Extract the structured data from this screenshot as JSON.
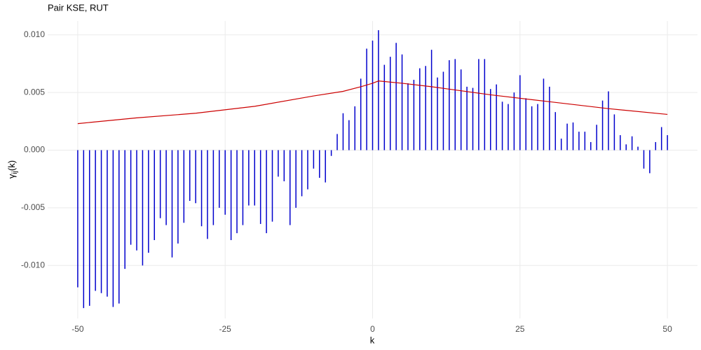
{
  "chart_data": {
    "type": "bar_line",
    "title": "Pair KSE, RUT",
    "xlabel": "k",
    "ylabel": {
      "symbol": "γ",
      "subscript": "ij",
      "argument": "(k)"
    },
    "xlim": [
      -55.1,
      55.1
    ],
    "ylim": [
      -0.0146,
      0.0112
    ],
    "xticks": [
      -50,
      -25,
      0,
      25,
      50
    ],
    "yticks": [
      {
        "value": -0.01,
        "label": "-0.010"
      },
      {
        "value": -0.005,
        "label": "-0.005"
      },
      {
        "value": 0,
        "label": "0.000"
      },
      {
        "value": 0.005,
        "label": "0.005"
      },
      {
        "value": 0.01,
        "label": "0.010"
      }
    ],
    "grid": true,
    "series": [
      {
        "kind": "bar",
        "color": "#0000cd",
        "x": [
          -50,
          -49,
          -48,
          -47,
          -46,
          -45,
          -44,
          -43,
          -42,
          -41,
          -40,
          -39,
          -38,
          -37,
          -36,
          -35,
          -34,
          -33,
          -32,
          -31,
          -30,
          -29,
          -28,
          -27,
          -26,
          -25,
          -24,
          -23,
          -22,
          -21,
          -20,
          -19,
          -18,
          -17,
          -16,
          -15,
          -14,
          -13,
          -12,
          -11,
          -10,
          -9,
          -8,
          -7,
          -6,
          -5,
          -4,
          -3,
          -2,
          -1,
          0,
          1,
          2,
          3,
          4,
          5,
          6,
          7,
          8,
          9,
          10,
          11,
          12,
          13,
          14,
          15,
          16,
          17,
          18,
          19,
          20,
          21,
          22,
          23,
          24,
          25,
          26,
          27,
          28,
          29,
          30,
          31,
          32,
          33,
          34,
          35,
          36,
          37,
          38,
          39,
          40,
          41,
          42,
          43,
          44,
          45,
          46,
          47,
          48,
          49,
          50
        ],
        "values": [
          -0.0119,
          -0.0137,
          -0.0135,
          -0.0122,
          -0.0124,
          -0.0127,
          -0.0136,
          -0.0133,
          -0.0103,
          -0.0082,
          -0.0087,
          -0.01,
          -0.0089,
          -0.0078,
          -0.0059,
          -0.0065,
          -0.0093,
          -0.0081,
          -0.0063,
          -0.0044,
          -0.0046,
          -0.0066,
          -0.0077,
          -0.0065,
          -0.005,
          -0.0056,
          -0.0078,
          -0.0072,
          -0.0065,
          -0.0048,
          -0.0048,
          -0.0064,
          -0.0072,
          -0.0062,
          -0.0023,
          -0.0027,
          -0.0065,
          -0.005,
          -0.004,
          -0.0034,
          -0.0016,
          -0.0024,
          -0.0028,
          -0.0005,
          0.0014,
          0.0032,
          0.0026,
          0.0038,
          0.0062,
          0.0088,
          0.0095,
          0.0104,
          0.0074,
          0.0081,
          0.0093,
          0.0083,
          0.0058,
          0.0061,
          0.0071,
          0.0073,
          0.0087,
          0.0063,
          0.0068,
          0.0078,
          0.0079,
          0.007,
          0.0055,
          0.0054,
          0.0079,
          0.0079,
          0.0053,
          0.0057,
          0.0042,
          0.004,
          0.005,
          0.0065,
          0.0045,
          0.0038,
          0.004,
          0.0062,
          0.0055,
          0.0033,
          0.001,
          0.0023,
          0.0024,
          0.0016,
          0.0016,
          0.0007,
          0.0022,
          0.0043,
          0.0051,
          0.0031,
          0.0013,
          0.0005,
          0.0012,
          0.0003,
          -0.0016,
          -0.002,
          0.0007,
          0.002,
          0.0013
        ]
      },
      {
        "kind": "line",
        "color": "#cc0000",
        "x": [
          -50,
          -40,
          -30,
          -20,
          -10,
          -5,
          -2,
          0,
          1,
          5,
          10,
          20,
          30,
          40,
          50
        ],
        "values": [
          0.0023,
          0.0028,
          0.0032,
          0.0038,
          0.0047,
          0.0051,
          0.0055,
          0.0058,
          0.006,
          0.0058,
          0.0055,
          0.0048,
          0.0042,
          0.0036,
          0.0031
        ]
      }
    ]
  }
}
